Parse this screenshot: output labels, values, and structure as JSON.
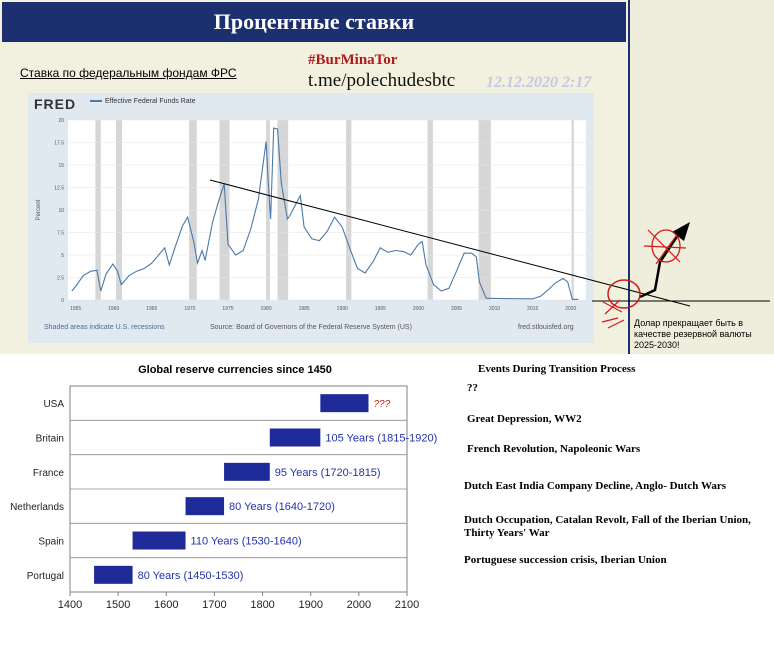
{
  "header": {
    "title": "Процентные ставки"
  },
  "captions": {
    "fed_link": "Ставка по федеральным фондам ФРС",
    "tag": "#BurMinaTor",
    "channel": "t.me/polechudesbtc",
    "timestamp": "12.12.2020 2:17",
    "dollar_note": "Долар прекращает быть в качестве резервной валюты 2025-2030!"
  },
  "fred": {
    "logo": "FRED",
    "legend": "Effective Federal Funds Rate",
    "note_left": "Shaded areas indicate U.S. recessions",
    "note_source": "Source: Board of Governors of the Federal Reserve System (US)",
    "note_right": "fred.stlouisfed.org"
  },
  "chart_data": [
    {
      "type": "line",
      "title": "Effective Federal Funds Rate",
      "ylabel": "Percent",
      "xlim": [
        1954,
        2022
      ],
      "ylim": [
        0,
        20
      ],
      "yticks": [
        0,
        2.5,
        5,
        7.5,
        10,
        12.5,
        15,
        17.5,
        20
      ],
      "xticks": [
        1955,
        1960,
        1965,
        1970,
        1975,
        1980,
        1985,
        1990,
        1995,
        2000,
        2005,
        2010,
        2015,
        2020
      ],
      "series": [
        {
          "name": "Effective Federal Funds Rate",
          "x": [
            1954.5,
            1955,
            1956,
            1957,
            1957.8,
            1958.3,
            1959,
            1959.9,
            1960.5,
            1961,
            1962,
            1963,
            1964,
            1965,
            1966,
            1966.7,
            1967.3,
            1968,
            1969,
            1969.7,
            1970.5,
            1971,
            1971.6,
            1972,
            1973,
            1973.7,
            1974.5,
            1975,
            1976,
            1977,
            1978,
            1979,
            1980,
            1980.3,
            1980.6,
            1981,
            1981.5,
            1982,
            1982.8,
            1983,
            1984.5,
            1985,
            1986,
            1987,
            1988,
            1989,
            1990,
            1991,
            1992,
            1993,
            1994,
            1995,
            1996,
            1997,
            1998,
            1999,
            2000,
            2000.5,
            2001,
            2002,
            2003,
            2004,
            2005,
            2006,
            2007,
            2007.6,
            2008,
            2008.9,
            2010,
            2012,
            2015,
            2016,
            2017,
            2018,
            2019,
            2019.6,
            2020.2,
            2021
          ],
          "values": [
            1.0,
            1.5,
            2.7,
            3.2,
            3.3,
            1.0,
            2.9,
            4.0,
            3.2,
            1.7,
            2.7,
            3.2,
            3.5,
            4.1,
            5.1,
            5.8,
            3.9,
            5.7,
            8.2,
            9.2,
            6.5,
            4.1,
            5.5,
            4.4,
            8.7,
            10.8,
            12.9,
            6.2,
            5.0,
            5.5,
            7.9,
            11.2,
            17.6,
            13.0,
            9.0,
            19.1,
            19.0,
            13.0,
            9.0,
            9.2,
            11.6,
            8.1,
            6.8,
            6.6,
            7.6,
            9.2,
            8.1,
            5.7,
            3.5,
            3.0,
            4.2,
            5.8,
            5.3,
            5.5,
            5.4,
            5.0,
            6.2,
            6.5,
            3.9,
            1.7,
            1.0,
            1.3,
            3.2,
            5.2,
            5.2,
            4.8,
            2.0,
            0.2,
            0.18,
            0.14,
            0.13,
            0.4,
            1.1,
            1.9,
            2.4,
            2.0,
            0.07,
            0.08
          ]
        }
      ],
      "recessions": [
        [
          1957.6,
          1958.3
        ],
        [
          1960.3,
          1961.1
        ],
        [
          1969.9,
          1970.9
        ],
        [
          1973.9,
          1975.2
        ],
        [
          1980.0,
          1980.5
        ],
        [
          1981.5,
          1982.9
        ],
        [
          1990.5,
          1991.2
        ],
        [
          2001.2,
          2001.9
        ],
        [
          2007.9,
          2009.5
        ],
        [
          2020.1,
          2020.4
        ]
      ]
    },
    {
      "type": "bar",
      "title": "Global reserve currencies since 1450",
      "categories": [
        "Portugal",
        "Spain",
        "Netherlands",
        "France",
        "Britain",
        "USA"
      ],
      "start": [
        1450,
        1530,
        1640,
        1720,
        1815,
        1920
      ],
      "end": [
        1530,
        1640,
        1720,
        1815,
        1920,
        2020
      ],
      "labels": [
        "80 Years (1450-1530)",
        "110 Years (1530-1640)",
        "80 Years (1640-1720)",
        "95 Years (1720-1815)",
        "105 Years (1815-1920)",
        "???"
      ],
      "xlim": [
        1400,
        2100
      ],
      "xticks": [
        1400,
        1500,
        1600,
        1700,
        1800,
        1900,
        2000,
        2100
      ],
      "bar_color": "#1f2a99",
      "label_color": "#2233aa",
      "unknown_color": "#d11a1a"
    }
  ],
  "events": {
    "title": "Events During Transition Process",
    "items": [
      "??",
      "Great Depression, WW2",
      "French Revolution, Napoleonic Wars",
      "Dutch East India Company Decline, Anglo- Dutch Wars",
      "Dutch Occupation, Catalan Revolt, Fall of the Iberian Union, Thirty Years' War",
      "Portuguese succession crisis, Iberian Union"
    ]
  }
}
